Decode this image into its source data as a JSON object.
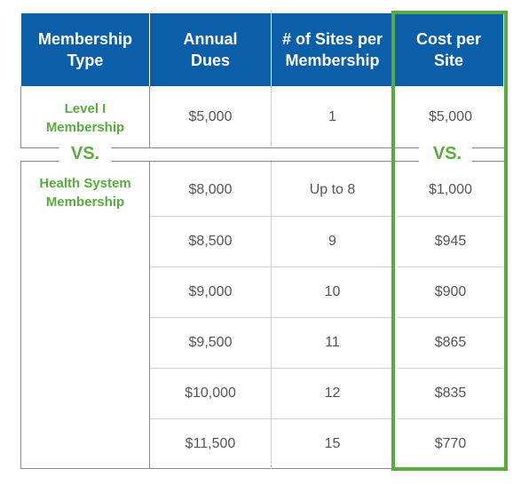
{
  "headers": [
    "Membership\nType",
    "Annual\nDues",
    "# of Sites per\nMembership",
    "Cost per\nSite"
  ],
  "level1": {
    "label": "Level I\nMembership",
    "dues": "$5,000",
    "sites": "1",
    "cost": "$5,000"
  },
  "vs_label": "VS.",
  "health_system": {
    "label": "Health System\nMembership",
    "rows": [
      {
        "dues": "$8,000",
        "sites": "Up to 8",
        "cost": "$1,000"
      },
      {
        "dues": "$8,500",
        "sites": "9",
        "cost": "$945"
      },
      {
        "dues": "$9,000",
        "sites": "10",
        "cost": "$900"
      },
      {
        "dues": "$9,500",
        "sites": "11",
        "cost": "$865"
      },
      {
        "dues": "$10,000",
        "sites": "12",
        "cost": "$835"
      },
      {
        "dues": "$11,500",
        "sites": "15",
        "cost": "$770"
      }
    ]
  },
  "colors": {
    "header_bg": "#0b5ea8",
    "accent_green": "#5aab3f"
  }
}
